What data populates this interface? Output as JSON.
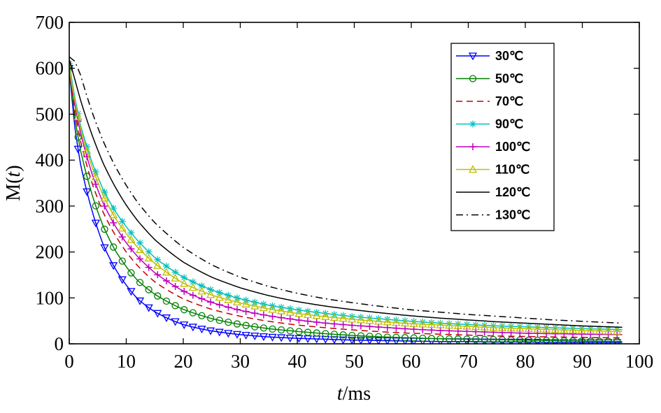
{
  "chart_data": {
    "type": "line",
    "title": "",
    "xlabel_italic": "t",
    "xlabel_rest": "/ms",
    "ylabel_prefix": "M(",
    "ylabel_italic": "t",
    "ylabel_suffix": ")",
    "xlim": [
      0,
      100
    ],
    "ylim": [
      0,
      700
    ],
    "xticks": [
      0,
      10,
      20,
      30,
      40,
      50,
      60,
      70,
      80,
      90,
      100
    ],
    "yticks": [
      0,
      100,
      200,
      300,
      400,
      500,
      600,
      700
    ],
    "grid": false,
    "legend_position": "top-right",
    "x": [
      0,
      1,
      2,
      4,
      6,
      8,
      10,
      12,
      15,
      20,
      25,
      30,
      35,
      40,
      45,
      50,
      55,
      60,
      65,
      70,
      75,
      80,
      85,
      90,
      97
    ],
    "series": [
      {
        "name": "30℃",
        "color": "#0000ff",
        "line": "solid",
        "marker": "triangle-down",
        "values": [
          600,
          470,
          390,
          290,
          215,
          165,
          128,
          98,
          70,
          42,
          28,
          20,
          15,
          12,
          10,
          8,
          7,
          6,
          5,
          5,
          4,
          4,
          3,
          3,
          3
        ]
      },
      {
        "name": "50℃",
        "color": "#007f00",
        "line": "solid",
        "marker": "circle",
        "values": [
          600,
          490,
          420,
          325,
          255,
          205,
          168,
          138,
          108,
          75,
          55,
          42,
          33,
          27,
          22,
          18,
          15,
          13,
          11,
          10,
          9,
          8,
          7,
          6,
          5
        ]
      },
      {
        "name": "70℃",
        "color": "#bf0000",
        "line": "dashed",
        "marker": "none",
        "values": [
          600,
          505,
          440,
          350,
          285,
          238,
          200,
          170,
          135,
          98,
          75,
          60,
          49,
          41,
          35,
          30,
          26,
          23,
          21,
          19,
          17,
          16,
          15,
          14,
          13
        ]
      },
      {
        "name": "90℃",
        "color": "#00bfbf",
        "line": "solid",
        "marker": "star",
        "values": [
          610,
          535,
          475,
          395,
          335,
          290,
          255,
          225,
          188,
          145,
          117,
          98,
          84,
          74,
          66,
          59,
          54,
          49,
          45,
          42,
          39,
          37,
          35,
          33,
          31
        ]
      },
      {
        "name": "100℃",
        "color": "#bf00bf",
        "line": "solid",
        "marker": "plus",
        "values": [
          600,
          520,
          458,
          370,
          305,
          258,
          220,
          190,
          155,
          115,
          90,
          73,
          61,
          52,
          45,
          40,
          36,
          32,
          29,
          27,
          25,
          23,
          22,
          21,
          20
        ]
      },
      {
        "name": "110℃",
        "color": "#bfbf00",
        "line": "solid",
        "marker": "triangle-up",
        "values": [
          600,
          528,
          468,
          385,
          322,
          275,
          240,
          210,
          175,
          132,
          106,
          89,
          76,
          66,
          59,
          53,
          48,
          44,
          41,
          38,
          35,
          33,
          31,
          29,
          27
        ]
      },
      {
        "name": "120℃",
        "color": "#000000",
        "line": "solid",
        "marker": "none",
        "values": [
          620,
          575,
          530,
          455,
          392,
          343,
          302,
          268,
          227,
          178,
          145,
          122,
          105,
          92,
          82,
          74,
          67,
          61,
          56,
          52,
          48,
          45,
          42,
          39,
          36
        ]
      },
      {
        "name": "130℃",
        "color": "#000000",
        "line": "dashdot",
        "marker": "none",
        "values": [
          625,
          615,
          585,
          505,
          440,
          388,
          345,
          308,
          264,
          210,
          172,
          145,
          125,
          110,
          98,
          89,
          81,
          74,
          69,
          64,
          60,
          56,
          52,
          49,
          45
        ]
      }
    ]
  }
}
